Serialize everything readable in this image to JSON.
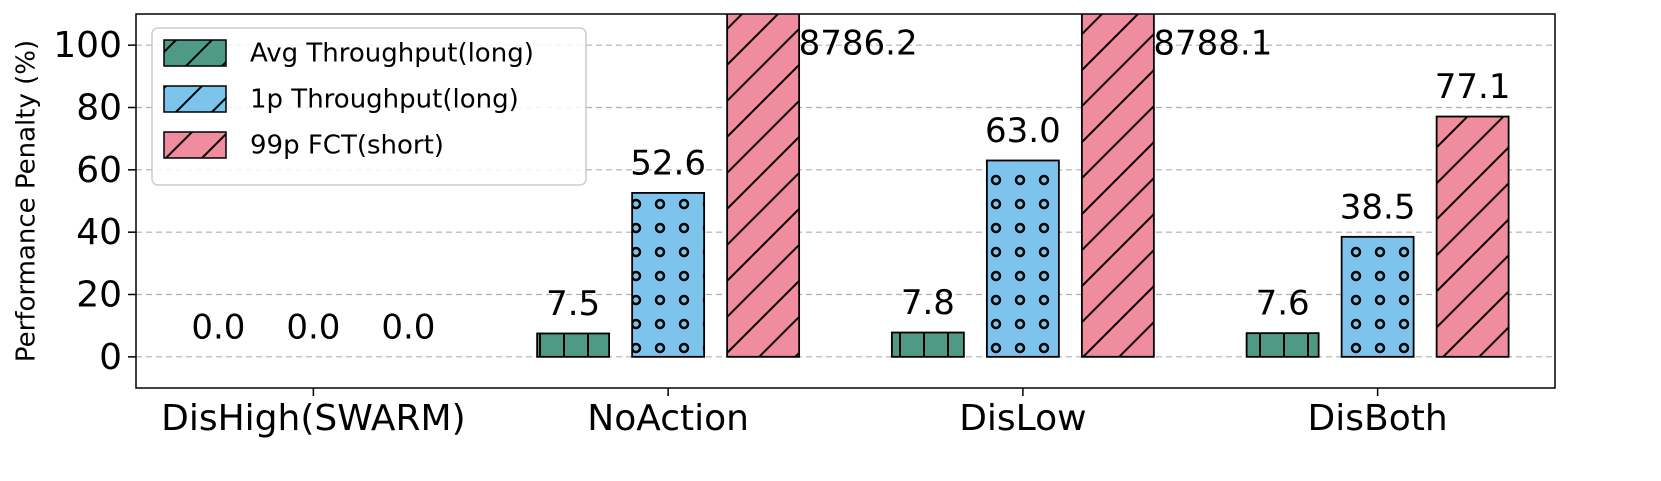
{
  "chart_data": {
    "type": "bar",
    "ylabel": "Performance Penalty (%)",
    "categories": [
      "DisHigh(SWARM)",
      "NoAction",
      "DisLow",
      "DisBoth"
    ],
    "series": [
      {
        "name": "Avg Throughput(long)",
        "color": "#4f9a84",
        "hatch": "|",
        "values": [
          0,
          7.5,
          7.8,
          7.6
        ],
        "value_labels": [
          "0.0",
          "7.5",
          "7.8",
          "7.6"
        ]
      },
      {
        "name": "1p Throughput(long)",
        "color": "#7cc4ec",
        "hatch": "o",
        "values": [
          0,
          52.6,
          63.0,
          38.5
        ],
        "value_labels": [
          "0.0",
          "52.6",
          "63.0",
          "38.5"
        ]
      },
      {
        "name": "99p FCT(short)",
        "color": "#ef8c9d",
        "hatch": "/",
        "values": [
          0,
          8786.2,
          8788.1,
          77.1
        ],
        "value_labels": [
          "0.0",
          "8786.2",
          "8788.1",
          "77.1"
        ]
      }
    ],
    "ylim": [
      -10,
      110
    ],
    "yticks": [
      0,
      20,
      40,
      60,
      80,
      100
    ],
    "grid": true,
    "legend": "upper left"
  }
}
